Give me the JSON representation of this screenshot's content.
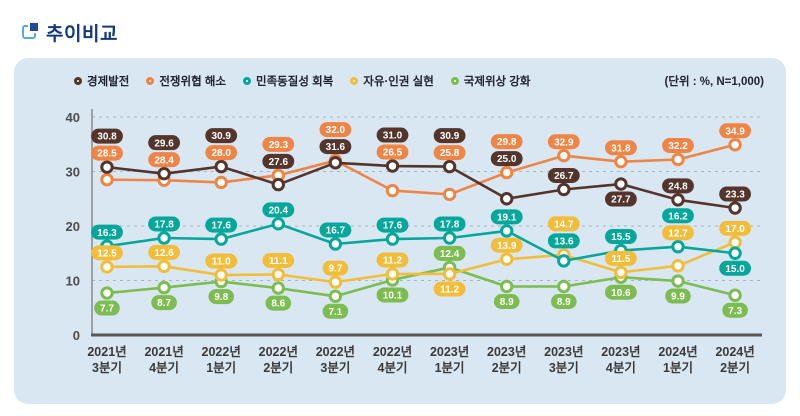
{
  "page": {
    "title": "추이비교"
  },
  "panel": {
    "unit_label": "(단위 : %, N=1,000)"
  },
  "chart_data": {
    "type": "line",
    "title": "추이비교",
    "unit": "%, N=1,000",
    "sample_size": "N=1,000",
    "legend_position": "top",
    "grid": "dashed-horizontal",
    "ylim": [
      0,
      40
    ],
    "y_ticks": [
      0,
      10,
      20,
      30,
      40
    ],
    "categories": [
      "2021년 3분기",
      "2021년 4분기",
      "2022년 1분기",
      "2022년 2분기",
      "2022년 3분기",
      "2022년 4분기",
      "2023년 1분기",
      "2023년 2분기",
      "2023년 3분기",
      "2023년 4분기",
      "2024년 1분기",
      "2024년 2분기"
    ],
    "series": [
      {
        "name": "경제발전",
        "color": "#53352c",
        "values": [
          30.8,
          29.6,
          30.9,
          27.6,
          31.6,
          31.0,
          30.9,
          25.0,
          26.7,
          27.7,
          24.8,
          23.3
        ],
        "label_sides": [
          "a",
          "a",
          "a",
          "a",
          "a",
          "a",
          "a",
          "a",
          "a",
          "b",
          "a",
          "a"
        ]
      },
      {
        "name": "전쟁위협 해소",
        "color": "#ee8546",
        "values": [
          28.5,
          28.4,
          28.0,
          29.3,
          32.0,
          26.5,
          25.8,
          29.8,
          32.9,
          31.8,
          32.2,
          34.9
        ],
        "label_sides": [
          "a",
          "a",
          "a",
          "a",
          "a",
          "a",
          "a",
          "a",
          "a",
          "a",
          "a",
          "a"
        ]
      },
      {
        "name": "민족동질성 회복",
        "color": "#06a79b",
        "values": [
          16.3,
          17.8,
          17.6,
          20.4,
          16.7,
          17.6,
          17.8,
          19.1,
          13.6,
          15.5,
          16.2,
          15.0
        ],
        "label_sides": [
          "a",
          "a",
          "a",
          "a",
          "a",
          "a",
          "a",
          "a",
          "a",
          "a",
          "a",
          "b"
        ]
      },
      {
        "name": "자유·인권 실현",
        "color": "#f3bd3c",
        "values": [
          12.5,
          12.6,
          11.0,
          11.1,
          9.7,
          11.2,
          11.2,
          13.9,
          14.7,
          11.5,
          12.7,
          17.0
        ],
        "label_sides": [
          "a",
          "a",
          "a",
          "a",
          "a",
          "a",
          "b",
          "a",
          "a",
          "a",
          "a",
          "a"
        ]
      },
      {
        "name": "국제위상 강화",
        "color": "#7cbc51",
        "values": [
          7.7,
          8.7,
          9.8,
          8.6,
          7.1,
          10.1,
          12.4,
          8.9,
          8.9,
          10.6,
          9.9,
          7.3
        ],
        "label_sides": [
          "b",
          "b",
          "b",
          "b",
          "b",
          "b",
          "a",
          "b",
          "b",
          "b",
          "b",
          "b"
        ]
      }
    ]
  }
}
